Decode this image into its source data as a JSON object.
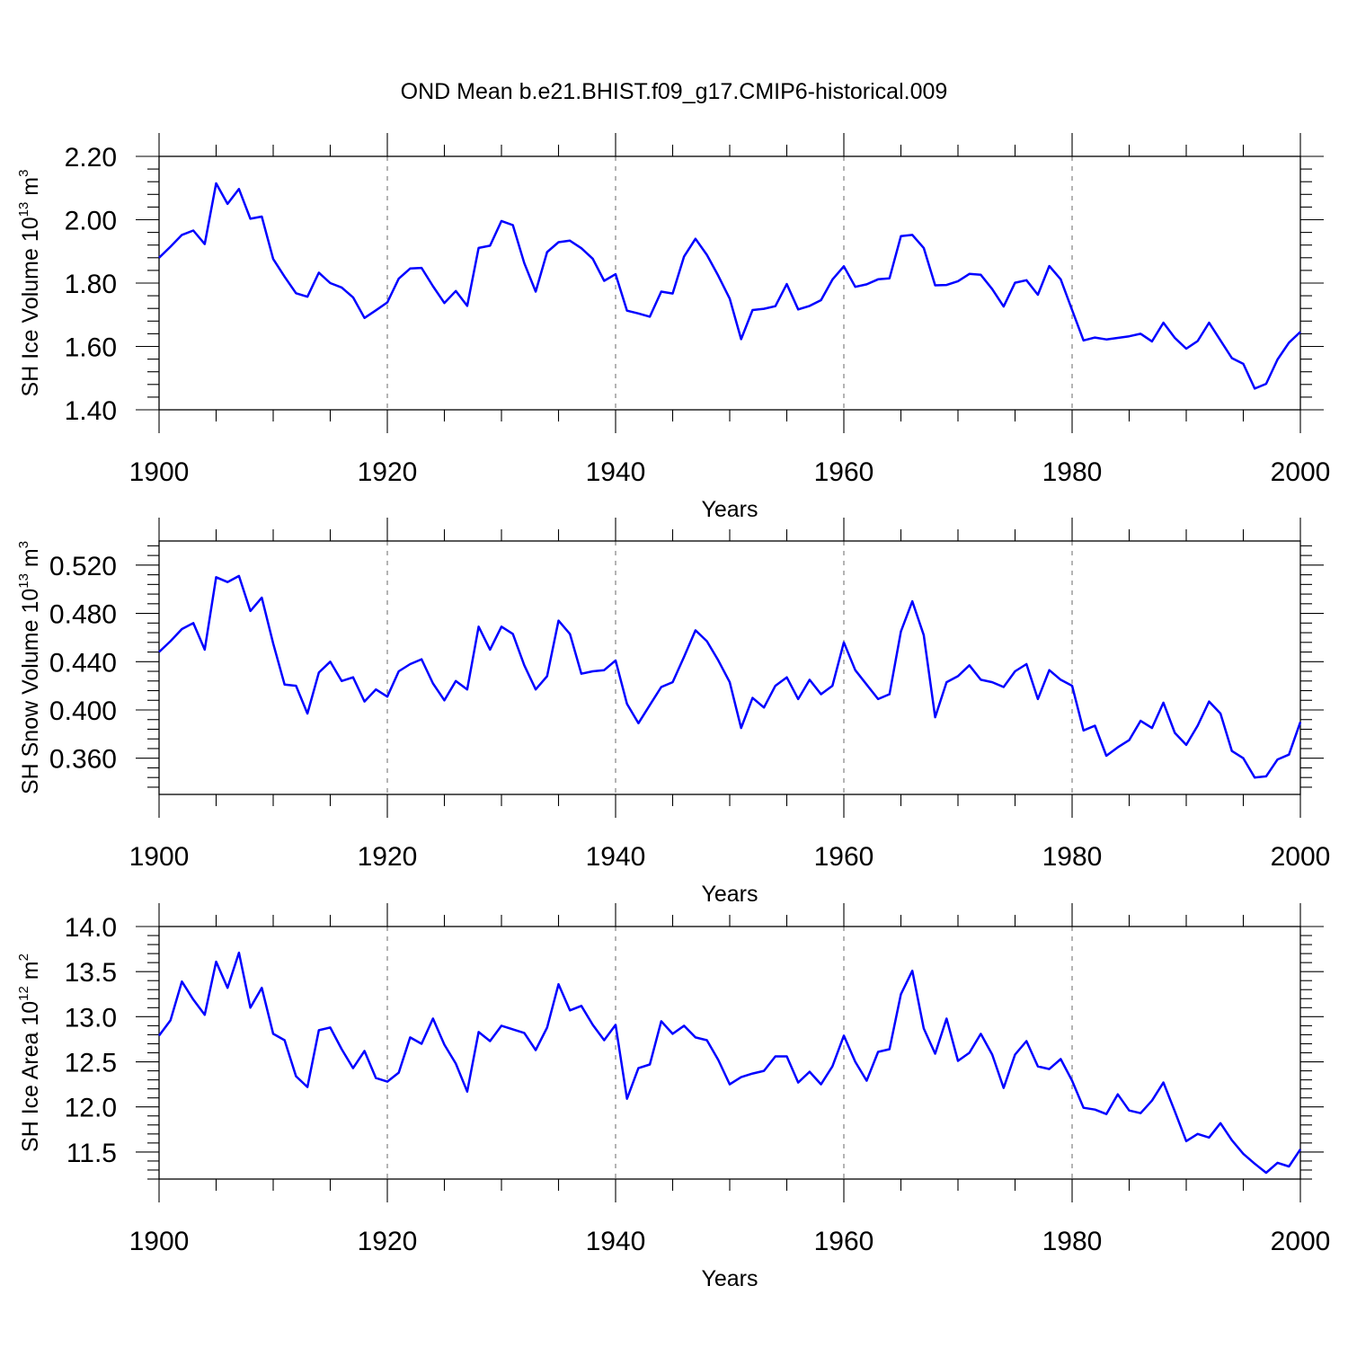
{
  "title": "OND Mean b.e21.BHIST.f09_g17.CMIP6-historical.009",
  "chart_data": [
    {
      "type": "line",
      "title": "OND Mean b.e21.BHIST.f09_g17.CMIP6-historical.009",
      "xlabel": "Years",
      "ylabel": "SH Ice Volume 10",
      "ylabel_exp": "13",
      "ylabel_unit": " m",
      "ylabel_unit_exp": "3",
      "xlim": [
        1900,
        2000
      ],
      "ylim": [
        1.4,
        2.2
      ],
      "x_tick_labels": [
        "1900",
        "1920",
        "1940",
        "1960",
        "1980",
        "2000"
      ],
      "y_tick_labels": [
        "1.40",
        "1.60",
        "1.80",
        "2.00",
        "2.20"
      ],
      "grid": "dashed vertical lines at major x ticks",
      "line_color": "#0000ff",
      "x_start": 1900,
      "values": [
        1.88,
        1.915,
        1.952,
        1.966,
        1.923,
        2.115,
        2.05,
        2.097,
        2.003,
        2.01,
        1.876,
        1.82,
        1.768,
        1.757,
        1.833,
        1.8,
        1.786,
        1.755,
        1.69,
        1.714,
        1.739,
        1.814,
        1.846,
        1.848,
        1.79,
        1.737,
        1.775,
        1.728,
        1.911,
        1.918,
        1.996,
        1.983,
        1.863,
        1.773,
        1.898,
        1.929,
        1.934,
        1.91,
        1.877,
        1.807,
        1.828,
        1.713,
        1.704,
        1.694,
        1.773,
        1.767,
        1.884,
        1.94,
        1.889,
        1.823,
        1.751,
        1.623,
        1.715,
        1.719,
        1.727,
        1.797,
        1.717,
        1.728,
        1.746,
        1.811,
        1.853,
        1.788,
        1.796,
        1.812,
        1.815,
        1.948,
        1.952,
        1.911,
        1.793,
        1.794,
        1.806,
        1.829,
        1.826,
        1.781,
        1.726,
        1.801,
        1.809,
        1.763,
        1.854,
        1.812,
        1.715,
        1.619,
        1.628,
        1.622,
        1.627,
        1.632,
        1.64,
        1.616,
        1.675,
        1.627,
        1.593,
        1.617,
        1.675,
        1.619,
        1.563,
        1.545,
        1.467,
        1.482,
        1.559,
        1.612,
        1.646
      ]
    },
    {
      "type": "line",
      "xlabel": "Years",
      "ylabel": "SH Snow Volume 10",
      "ylabel_exp": "13",
      "ylabel_unit": " m",
      "ylabel_unit_exp": "3",
      "xlim": [
        1900,
        2000
      ],
      "ylim": [
        0.33,
        0.54
      ],
      "x_tick_labels": [
        "1900",
        "1920",
        "1940",
        "1960",
        "1980",
        "2000"
      ],
      "y_tick_labels": [
        "0.360",
        "0.400",
        "0.440",
        "0.480",
        "0.520"
      ],
      "grid": "dashed vertical lines at major x ticks",
      "line_color": "#0000ff",
      "x_start": 1900,
      "values": [
        0.448,
        0.457,
        0.467,
        0.472,
        0.45,
        0.51,
        0.506,
        0.511,
        0.482,
        0.493,
        0.455,
        0.421,
        0.42,
        0.397,
        0.431,
        0.44,
        0.424,
        0.427,
        0.407,
        0.417,
        0.411,
        0.432,
        0.438,
        0.442,
        0.422,
        0.408,
        0.424,
        0.417,
        0.469,
        0.45,
        0.469,
        0.463,
        0.437,
        0.417,
        0.428,
        0.474,
        0.463,
        0.43,
        0.432,
        0.433,
        0.441,
        0.405,
        0.389,
        0.404,
        0.419,
        0.423,
        0.444,
        0.466,
        0.457,
        0.441,
        0.423,
        0.385,
        0.41,
        0.402,
        0.42,
        0.427,
        0.409,
        0.425,
        0.413,
        0.42,
        0.456,
        0.433,
        0.421,
        0.409,
        0.413,
        0.465,
        0.49,
        0.462,
        0.394,
        0.423,
        0.428,
        0.437,
        0.425,
        0.423,
        0.419,
        0.432,
        0.438,
        0.409,
        0.433,
        0.425,
        0.42,
        0.383,
        0.387,
        0.362,
        0.369,
        0.375,
        0.391,
        0.385,
        0.406,
        0.381,
        0.371,
        0.387,
        0.407,
        0.397,
        0.366,
        0.36,
        0.344,
        0.345,
        0.359,
        0.363,
        0.39
      ]
    },
    {
      "type": "line",
      "xlabel": "Years",
      "ylabel": "SH Ice Area 10",
      "ylabel_exp": "12",
      "ylabel_unit": " m",
      "ylabel_unit_exp": "2",
      "xlim": [
        1900,
        2000
      ],
      "ylim": [
        11.2,
        14.0
      ],
      "x_tick_labels": [
        "1900",
        "1920",
        "1940",
        "1960",
        "1980",
        "2000"
      ],
      "y_tick_labels": [
        "11.5",
        "12.0",
        "12.5",
        "13.0",
        "13.5",
        "14.0"
      ],
      "grid": "dashed vertical lines at major x ticks",
      "line_color": "#0000ff",
      "x_start": 1900,
      "values": [
        12.79,
        12.96,
        13.39,
        13.19,
        13.02,
        13.61,
        13.32,
        13.71,
        13.1,
        13.32,
        12.81,
        12.74,
        12.34,
        12.22,
        12.85,
        12.88,
        12.64,
        12.43,
        12.62,
        12.32,
        12.28,
        12.38,
        12.77,
        12.7,
        12.98,
        12.69,
        12.48,
        12.17,
        12.83,
        12.73,
        12.9,
        12.86,
        12.82,
        12.63,
        12.88,
        13.36,
        13.07,
        13.12,
        12.91,
        12.74,
        12.91,
        12.09,
        12.43,
        12.47,
        12.95,
        12.81,
        12.9,
        12.77,
        12.74,
        12.52,
        12.25,
        12.33,
        12.37,
        12.4,
        12.56,
        12.56,
        12.27,
        12.39,
        12.25,
        12.45,
        12.79,
        12.5,
        12.29,
        12.61,
        12.64,
        13.25,
        13.51,
        12.87,
        12.59,
        12.98,
        12.51,
        12.6,
        12.81,
        12.58,
        12.21,
        12.58,
        12.73,
        12.45,
        12.42,
        12.53,
        12.29,
        11.99,
        11.97,
        11.92,
        12.14,
        11.96,
        11.93,
        12.07,
        12.27,
        11.95,
        11.62,
        11.7,
        11.66,
        11.82,
        11.63,
        11.48,
        11.37,
        11.27,
        11.38,
        11.34,
        11.53
      ]
    }
  ]
}
